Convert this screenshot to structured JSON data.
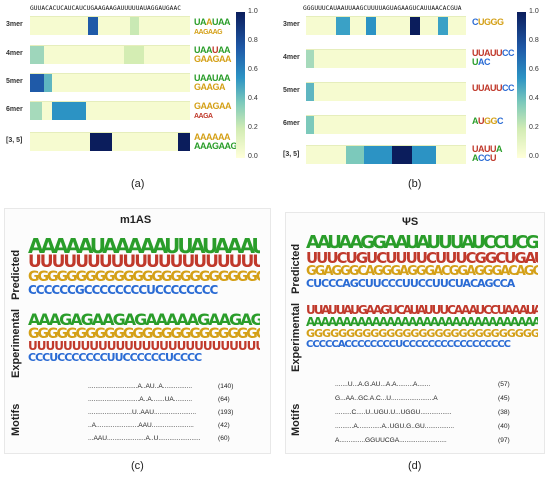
{
  "panel_a": {
    "sequence": "GUUACACUCAUCAUCUGAAGAAGAUUUUUAUAGGAUGAAC",
    "rows": [
      "3mer",
      "4mer",
      "5mer",
      "6mer",
      "[3, 5]"
    ],
    "logos": [
      "UAAUAA / AAGAAG",
      "UAAUAA / GAAGAA",
      "UAAUAA / GAAGA",
      "GAAGAA / AAGA",
      "AAAAAA / AAAGAAGA"
    ],
    "caption": "(a)"
  },
  "panel_b": {
    "sequence": "GGGUUUCAUAAUUAAGCUUUUAGUAGAAGUCAUUAACACGUA",
    "rows": [
      "3mer",
      "4mer",
      "5mer",
      "6mer",
      "[3, 5]"
    ],
    "logos": [
      "CUGGG",
      "UUAUUCC / UAC",
      "UUAUUCC",
      "AUGGC",
      "UAUUA / ACCU"
    ],
    "caption": "(b)"
  },
  "colorbar_ticks": [
    "1.0",
    "0.8",
    "0.6",
    "0.4",
    "0.2",
    "0.0"
  ],
  "panel_c": {
    "title": "m1AS",
    "predicted_label": "Predicted",
    "experimental_label": "Experimental",
    "motifs_label": "Motifs",
    "motifs": [
      {
        "pattern": "...........................A..AU..A................",
        "count": "(140)"
      },
      {
        "pattern": "............................A..A.......UA..........",
        "count": "(64)"
      },
      {
        "pattern": "........................U..AAU.......................",
        "count": "(193)"
      },
      {
        "pattern": "..A.......................AAU.......................",
        "count": "(42)"
      },
      {
        "pattern": "...AAU.....................A..U.......................",
        "count": "(60)"
      }
    ],
    "predicted_top": "AAAAAUAAAAAUUAUAAAUAAAAAAAA",
    "predicted_bottom": "CCCCCCGCCCCCCCCUCCCCCCCC",
    "experimental_top": "AAAGAGAAGAGAAAAAGAAGAGAAG",
    "experimental_bottom": "CCCUCCCCCCCUUCCCCCCUCCCC",
    "caption": "(c)"
  },
  "panel_d": {
    "title": "ΨS",
    "predicted_label": "Predicted",
    "experimental_label": "Experimental",
    "motifs_label": "Motifs",
    "motifs": [
      {
        "pattern": ".......U...A.G.AU...A.A.........A.......",
        "count": "(57)"
      },
      {
        "pattern": "G...AA..GC.A.C...U.......................A",
        "count": "(45)"
      },
      {
        "pattern": ".........C.....U..UGU.U...UGGU.................",
        "count": "(38)"
      },
      {
        "pattern": "..........A.............A..UGU.G..GU................",
        "count": "(40)"
      },
      {
        "pattern": "A..............GGUUCGA..........................",
        "count": "(97)"
      }
    ],
    "predicted_top": "AAUAAGGAAUAUUUAUCCUCGACCGGCG",
    "predicted_bottom": "CUCCCAGCUUCCCUUCCUUCUACAGCCA",
    "experimental_top": "UUAUUAUGAAGUCAUAUUUCAAAUCCUAAAUAGAUUC",
    "experimental_bottom": "CCCCCACCCCCCCCUCCCCCCCCCCCCCCCCC",
    "caption": "(d)"
  }
}
